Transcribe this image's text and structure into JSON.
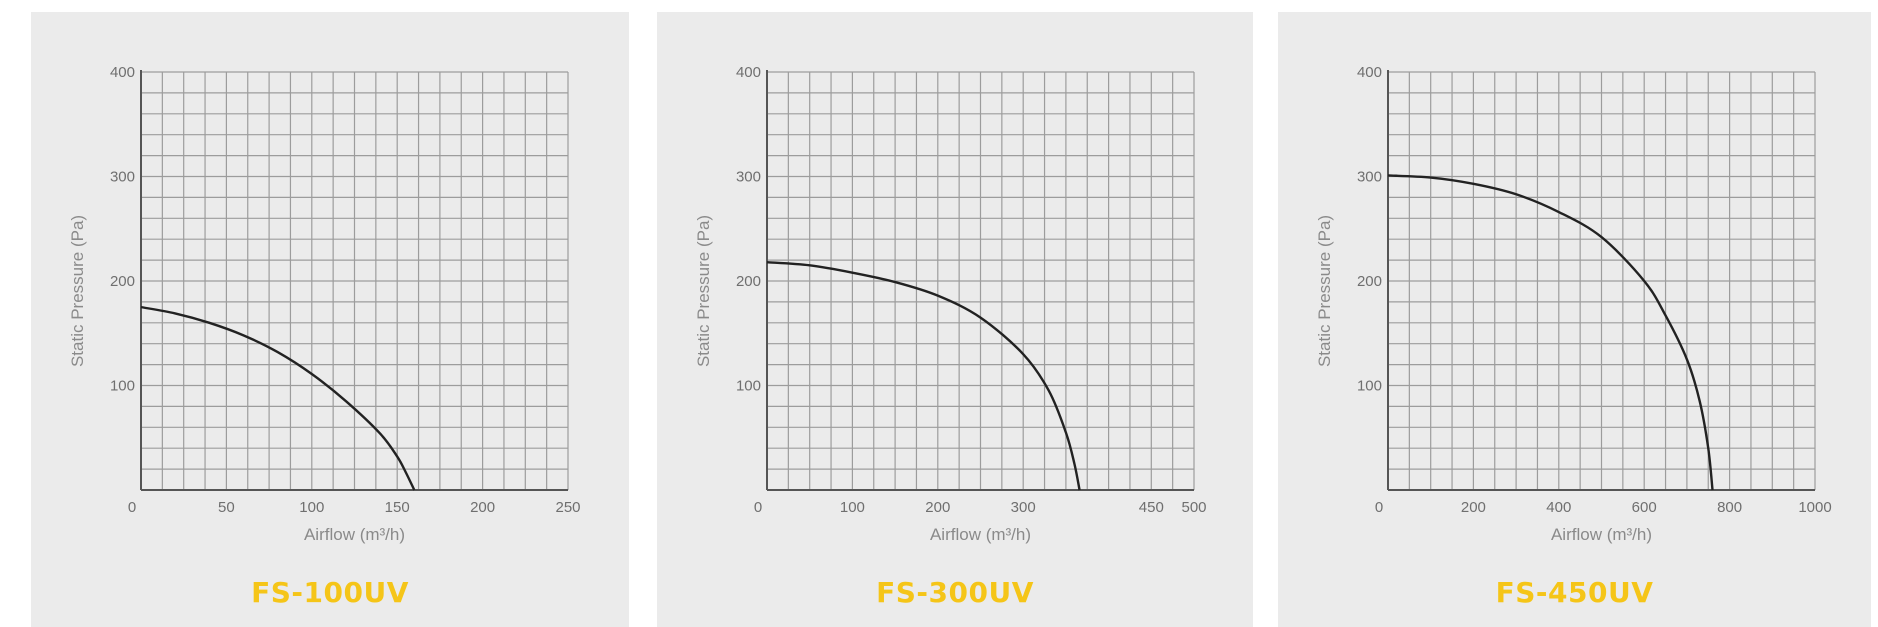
{
  "colors": {
    "panel_bg": "#ebebeb",
    "grid": "#9c9c9c",
    "axis": "#555555",
    "curve": "#222222",
    "model_label": "#f5c518"
  },
  "chart_data": [
    {
      "type": "line",
      "model": "FS-100UV",
      "xlabel": "Airflow (m³/h)",
      "ylabel": "Static Pressure (Pa)",
      "xlim": [
        0,
        250
      ],
      "ylim": [
        0,
        400
      ],
      "x_ticks": [
        0,
        50,
        100,
        150,
        200,
        250
      ],
      "x_tick_labels": [
        "0",
        "50",
        "100",
        "150",
        "200",
        "250"
      ],
      "y_ticks": [
        100,
        200,
        300,
        400
      ],
      "y_tick_labels": [
        "100",
        "200",
        "300",
        "400"
      ],
      "grid": true,
      "series": [
        {
          "x": [
            0,
            20,
            40,
            60,
            80,
            100,
            120,
            140,
            150,
            155,
            160
          ],
          "y": [
            175,
            169,
            160,
            148,
            132,
            111,
            85,
            54,
            32,
            17,
            0
          ]
        }
      ]
    },
    {
      "type": "line",
      "model": "FS-300UV",
      "xlabel": "Airflow (m³/h)",
      "ylabel": "Static Pressure (Pa)",
      "xlim": [
        0,
        500
      ],
      "ylim": [
        0,
        400
      ],
      "x_ticks": [
        0,
        100,
        200,
        300,
        450,
        500
      ],
      "x_tick_labels": [
        "0",
        "100",
        "200",
        "300",
        "450",
        "500"
      ],
      "y_ticks": [
        100,
        200,
        300,
        400
      ],
      "y_tick_labels": [
        "100",
        "200",
        "300",
        "400"
      ],
      "grid": true,
      "series": [
        {
          "x": [
            0,
            50,
            100,
            150,
            200,
            250,
            300,
            330,
            350,
            360,
            366
          ],
          "y": [
            218,
            215,
            208,
            199,
            186,
            165,
            130,
            95,
            55,
            25,
            0
          ]
        }
      ]
    },
    {
      "type": "line",
      "model": "FS-450UV",
      "xlabel": "Airflow (m³/h)",
      "ylabel": "Static Pressure (Pa)",
      "xlim": [
        0,
        1000
      ],
      "ylim": [
        0,
        400
      ],
      "x_ticks": [
        0,
        200,
        400,
        600,
        800,
        1000
      ],
      "x_tick_labels": [
        "0",
        "200",
        "400",
        "600",
        "800",
        "1000"
      ],
      "y_ticks": [
        100,
        200,
        300,
        400
      ],
      "y_tick_labels": [
        "100",
        "200",
        "300",
        "400"
      ],
      "grid": true,
      "series": [
        {
          "x": [
            0,
            100,
            200,
            300,
            400,
            500,
            600,
            650,
            700,
            730,
            750,
            760
          ],
          "y": [
            301,
            299,
            293,
            283,
            266,
            242,
            200,
            167,
            125,
            85,
            40,
            0
          ]
        }
      ]
    }
  ]
}
